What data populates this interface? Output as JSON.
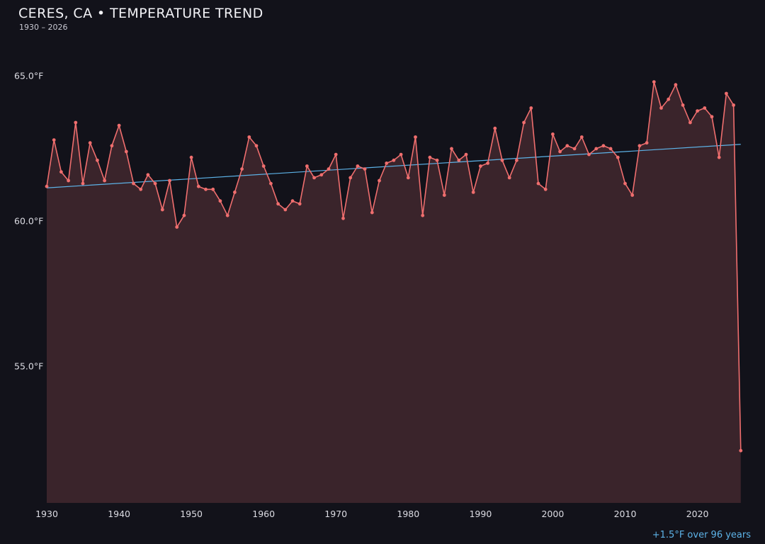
{
  "chart_data": {
    "type": "line",
    "title": "CERES, CA • TEMPERATURE TREND",
    "subtitle": "1930 – 2026",
    "annotation": "+1.5°F over 96 years",
    "year_start": 1930,
    "year_end": 2026,
    "values": [
      61.2,
      62.8,
      61.7,
      61.4,
      63.4,
      61.3,
      62.7,
      62.1,
      61.4,
      62.6,
      63.3,
      62.4,
      61.3,
      61.1,
      61.6,
      61.3,
      60.4,
      61.4,
      59.8,
      60.2,
      62.2,
      61.2,
      61.1,
      61.1,
      60.7,
      60.2,
      61.0,
      61.8,
      62.9,
      62.6,
      61.9,
      61.3,
      60.6,
      60.4,
      60.7,
      60.6,
      61.9,
      61.5,
      61.6,
      61.8,
      62.3,
      60.1,
      61.5,
      61.9,
      61.8,
      60.3,
      61.4,
      62.0,
      62.1,
      62.3,
      61.5,
      62.9,
      60.2,
      62.2,
      62.1,
      60.9,
      62.5,
      62.1,
      62.3,
      61.0,
      61.9,
      62.0,
      63.2,
      62.1,
      61.5,
      62.1,
      63.4,
      63.9,
      61.3,
      61.1,
      63.0,
      62.4,
      62.6,
      62.5,
      62.9,
      62.3,
      62.5,
      62.6,
      62.5,
      62.2,
      61.3,
      60.9,
      62.6,
      62.7,
      64.8,
      63.9,
      64.2,
      64.7,
      64.0,
      63.4,
      63.8,
      63.9,
      63.6,
      62.2,
      64.4,
      64.0,
      52.1
    ],
    "trend": {
      "start_year": 1930,
      "end_year": 2026,
      "start_value": 61.15,
      "end_value": 62.65
    },
    "x_ticks": [
      1930,
      1940,
      1950,
      1960,
      1970,
      1980,
      1990,
      2000,
      2010,
      2020
    ],
    "y_ticks": [
      {
        "value": 65,
        "label": "65.0°F"
      },
      {
        "value": 60,
        "label": "60.0°F"
      },
      {
        "value": 55,
        "label": "55.0°F"
      }
    ],
    "xlim": [
      1930,
      2027
    ],
    "ylim": [
      50.3,
      66.4
    ],
    "grid": false,
    "legend": "none",
    "colors": {
      "background": "#12121a",
      "line": "#ef6e6e",
      "marker": "#ef6e6e",
      "fill": "#3a242b",
      "trend": "#5db3e8",
      "title_text": "#f2f2f6",
      "subtitle_text": "#c9c9d3",
      "axis_text": "#dcdce3",
      "annotation_text": "#5db3e8"
    }
  }
}
